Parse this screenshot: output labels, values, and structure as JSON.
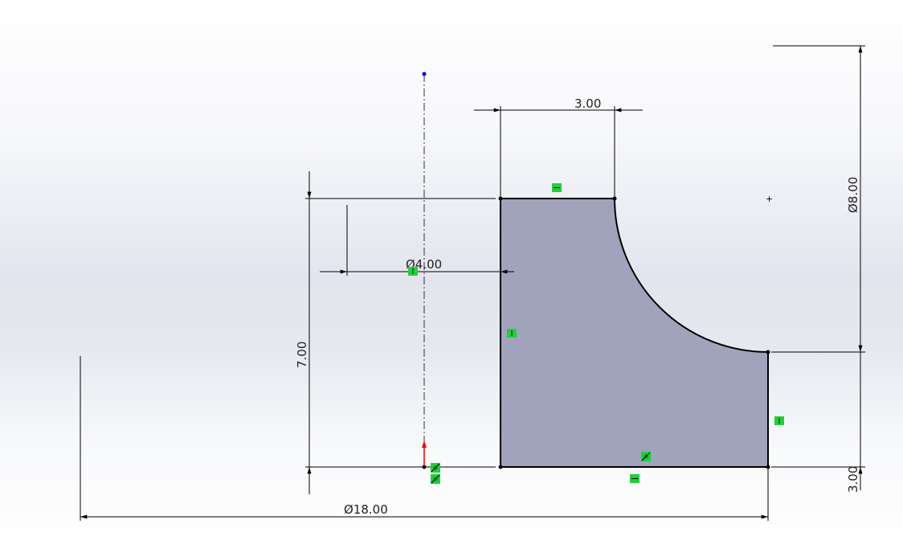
{
  "sketch": {
    "profile_fill": "#a0a3bb",
    "dimensions": {
      "top_width": "3.00",
      "arc_diameter": "Ø8.00",
      "right_height": "3.00",
      "total_height": "7.00",
      "inner_diameter": "Ø4.00",
      "outer_diameter": "Ø18.00"
    },
    "relations": [
      "horizontal",
      "vertical",
      "vertical",
      "vertical",
      "horizontal",
      "horizontal",
      "coincident",
      "coincident",
      "coincident"
    ],
    "colors": {
      "relation": "#1ed13a",
      "point": "#0000ff",
      "origin_arrow": "#ff0000"
    }
  }
}
